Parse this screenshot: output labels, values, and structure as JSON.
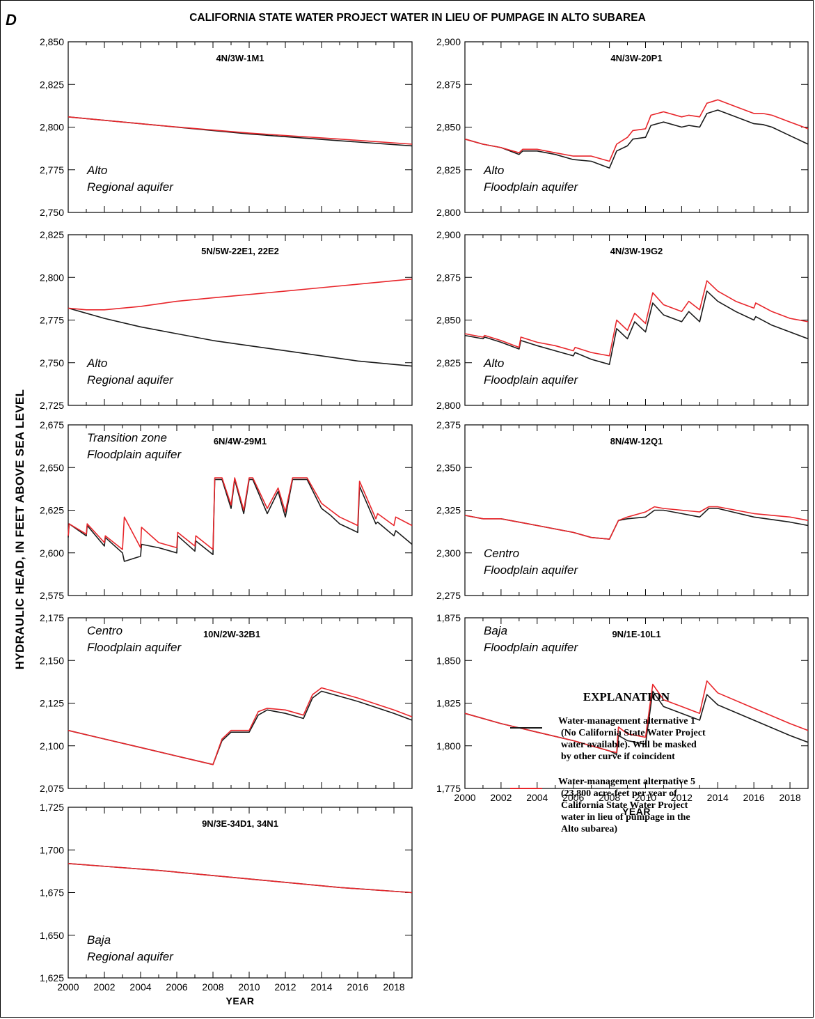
{
  "figure": {
    "letter": "D",
    "title": "CALIFORNIA STATE WATER PROJECT WATER IN LIEU OF PUMPAGE IN ALTO SUBAREA",
    "ylabel": "HYDRAULIC HEAD, IN FEET ABOVE SEA LEVEL",
    "xlabel": "YEAR",
    "colors": {
      "alt1": "#1a1a1a",
      "alt5": "#e8262b"
    }
  },
  "explanation": {
    "title": "EXPLANATION",
    "items": [
      {
        "series": "alt1",
        "lines": [
          "Water-management alternative 1",
          "(No California State Water Project",
          "water available). Will be masked",
          "by other curve if coincident"
        ]
      },
      {
        "series": "alt5",
        "lines": [
          "Water-management alternative 5",
          "(23,800 acre-feet per year of",
          "California State Water Project",
          "water in lieu of pumpage in the",
          "Alto subarea)"
        ]
      }
    ]
  },
  "chart_data": [
    {
      "type": "line",
      "title": "4N/3W-1M1",
      "location": [
        "Alto",
        "Regional aquifer"
      ],
      "xlim": [
        2000,
        2019
      ],
      "ylim": [
        2750,
        2850
      ],
      "yticks": [
        2750,
        2775,
        2800,
        2825,
        2850
      ],
      "series": [
        {
          "name": "Water-management alternative 1",
          "key": "alt1",
          "x": [
            2000,
            2005,
            2010,
            2015,
            2019
          ],
          "y": [
            2806,
            2801,
            2796,
            2792,
            2789
          ]
        },
        {
          "name": "Water-management alternative 5",
          "key": "alt5",
          "x": [
            2000,
            2005,
            2010,
            2015,
            2019
          ],
          "y": [
            2806,
            2801,
            2796.5,
            2793,
            2790
          ]
        }
      ]
    },
    {
      "type": "line",
      "title": "4N/3W-20P1",
      "location": [
        "Alto",
        "Floodplain aquifer"
      ],
      "xlim": [
        2000,
        2019
      ],
      "ylim": [
        2800,
        2900
      ],
      "yticks": [
        2800,
        2825,
        2850,
        2875,
        2900
      ],
      "series": [
        {
          "name": "Water-management alternative 1",
          "key": "alt1",
          "x": [
            2000,
            2001,
            2002,
            2003,
            2003.2,
            2004,
            2005,
            2006,
            2007,
            2008,
            2008.4,
            2009,
            2009.3,
            2010,
            2010.3,
            2011,
            2012,
            2012.4,
            2013,
            2013.4,
            2014,
            2015,
            2016,
            2016.5,
            2017,
            2018,
            2019
          ],
          "y": [
            2843,
            2840,
            2838,
            2834,
            2836,
            2836,
            2834,
            2831,
            2830,
            2826,
            2836,
            2839,
            2843,
            2844,
            2851,
            2853,
            2850,
            2851,
            2850,
            2858,
            2860,
            2856,
            2852,
            2851.5,
            2850,
            2845,
            2840
          ]
        },
        {
          "name": "Water-management alternative 5",
          "key": "alt5",
          "x": [
            2000,
            2001,
            2002,
            2003,
            2003.2,
            2004,
            2005,
            2006,
            2007,
            2008,
            2008.4,
            2009,
            2009.3,
            2010,
            2010.3,
            2011,
            2012,
            2012.4,
            2013,
            2013.4,
            2014,
            2015,
            2016,
            2016.5,
            2017,
            2018,
            2019
          ],
          "y": [
            2843,
            2840,
            2838,
            2835,
            2837,
            2837,
            2835,
            2833,
            2833,
            2830,
            2840,
            2844,
            2848,
            2849,
            2857,
            2859,
            2856,
            2857,
            2856,
            2864,
            2866,
            2862,
            2858,
            2858,
            2857,
            2853,
            2849
          ]
        }
      ]
    },
    {
      "type": "line",
      "title": "5N/5W-22E1, 22E2",
      "location": [
        "Alto",
        "Regional aquifer"
      ],
      "xlim": [
        2000,
        2019
      ],
      "ylim": [
        2725,
        2825
      ],
      "yticks": [
        2725,
        2750,
        2775,
        2800,
        2825
      ],
      "series": [
        {
          "name": "Water-management alternative 1",
          "key": "alt1",
          "x": [
            2000,
            2002,
            2004,
            2006,
            2008,
            2010,
            2012,
            2014,
            2016,
            2018,
            2019
          ],
          "y": [
            2782,
            2776,
            2771,
            2767,
            2763,
            2760,
            2757,
            2754,
            2751,
            2749,
            2748
          ]
        },
        {
          "name": "Water-management alternative 5",
          "key": "alt5",
          "x": [
            2000,
            2001,
            2002,
            2004,
            2006,
            2008,
            2010,
            2012,
            2014,
            2016,
            2018,
            2019
          ],
          "y": [
            2782,
            2781,
            2781,
            2783,
            2786,
            2788,
            2790,
            2792,
            2794,
            2796,
            2798,
            2799
          ]
        }
      ]
    },
    {
      "type": "line",
      "title": "4N/3W-19G2",
      "location": [
        "Alto",
        "Floodplain aquifer"
      ],
      "xlim": [
        2000,
        2019
      ],
      "ylim": [
        2800,
        2900
      ],
      "yticks": [
        2800,
        2825,
        2850,
        2875,
        2900
      ],
      "series": [
        {
          "name": "Water-management alternative 1",
          "key": "alt1",
          "x": [
            2000,
            2001,
            2001.1,
            2002,
            2003,
            2003.1,
            2004,
            2005,
            2006,
            2006.1,
            2007,
            2008,
            2008.4,
            2009,
            2009.4,
            2010,
            2010.4,
            2011,
            2012,
            2012.4,
            2013,
            2013.4,
            2014,
            2015,
            2016,
            2016.1,
            2017,
            2018,
            2019
          ],
          "y": [
            2841,
            2839,
            2840,
            2837,
            2833,
            2838,
            2835,
            2832,
            2829,
            2831,
            2827,
            2824,
            2845,
            2839,
            2849,
            2843,
            2860,
            2853,
            2849,
            2855,
            2849,
            2867,
            2861,
            2855,
            2850,
            2852,
            2847,
            2843,
            2839
          ]
        },
        {
          "name": "Water-management alternative 5",
          "key": "alt5",
          "x": [
            2000,
            2001,
            2001.1,
            2002,
            2003,
            2003.1,
            2004,
            2005,
            2006,
            2006.1,
            2007,
            2008,
            2008.4,
            2009,
            2009.4,
            2010,
            2010.4,
            2011,
            2012,
            2012.4,
            2013,
            2013.4,
            2014,
            2015,
            2016,
            2016.1,
            2017,
            2018,
            2019
          ],
          "y": [
            2842,
            2840,
            2841,
            2838,
            2834,
            2840,
            2837,
            2835,
            2832,
            2834,
            2831,
            2829,
            2850,
            2844,
            2854,
            2848,
            2866,
            2859,
            2855,
            2861,
            2856,
            2873,
            2867,
            2861,
            2857,
            2860,
            2855,
            2851,
            2849
          ]
        }
      ]
    },
    {
      "type": "line",
      "title": "6N/4W-29M1",
      "location": [
        "Transition zone",
        "Floodplain aquifer"
      ],
      "xlim": [
        2000,
        2019
      ],
      "ylim": [
        2575,
        2675
      ],
      "yticks": [
        2575,
        2600,
        2625,
        2650,
        2675
      ],
      "series": [
        {
          "name": "Water-management alternative 1",
          "key": "alt1",
          "x": [
            2000,
            2000.05,
            2001,
            2001.05,
            2002,
            2002.05,
            2003,
            2003.1,
            2004,
            2004.05,
            2005,
            2006,
            2006.05,
            2007,
            2007.05,
            2008,
            2008.1,
            2008.5,
            2009,
            2009.2,
            2009.7,
            2010,
            2010.2,
            2011,
            2011.6,
            2012,
            2012.4,
            2013,
            2013.2,
            2014,
            2014.5,
            2015,
            2016,
            2016.1,
            2017,
            2017.1,
            2018,
            2018.1,
            2019
          ],
          "y": [
            2609,
            2617,
            2610,
            2616,
            2604,
            2609,
            2600,
            2595,
            2598,
            2605,
            2603,
            2600,
            2610,
            2601,
            2607,
            2599,
            2643,
            2643,
            2626,
            2643,
            2623,
            2643,
            2643,
            2623,
            2636,
            2621,
            2643,
            2643,
            2643,
            2626,
            2622,
            2617,
            2612,
            2639,
            2617,
            2618,
            2610,
            2613,
            2605
          ]
        },
        {
          "name": "Water-management alternative 5",
          "key": "alt5",
          "x": [
            2000,
            2000.05,
            2001,
            2001.05,
            2002,
            2002.05,
            2003,
            2003.1,
            2004,
            2004.05,
            2005,
            2006,
            2006.05,
            2007,
            2007.05,
            2008,
            2008.1,
            2008.5,
            2009,
            2009.2,
            2009.7,
            2010,
            2010.2,
            2011,
            2011.6,
            2012,
            2012.4,
            2013,
            2013.2,
            2014,
            2014.5,
            2015,
            2016,
            2016.1,
            2017,
            2017.1,
            2018,
            2018.1,
            2019
          ],
          "y": [
            2610,
            2617,
            2611,
            2617,
            2606,
            2610,
            2602,
            2621,
            2603,
            2615,
            2606,
            2603,
            2612,
            2604,
            2610,
            2602,
            2644,
            2644,
            2628,
            2644,
            2625,
            2644,
            2644,
            2626,
            2638,
            2624,
            2644,
            2644,
            2644,
            2629,
            2625,
            2621,
            2616,
            2642,
            2620,
            2623,
            2616,
            2621,
            2616
          ]
        }
      ]
    },
    {
      "type": "line",
      "title": "8N/4W-12Q1",
      "location": [
        "Centro",
        "Floodplain aquifer"
      ],
      "xlim": [
        2000,
        2019
      ],
      "ylim": [
        2275,
        2375
      ],
      "yticks": [
        2275,
        2300,
        2325,
        2350,
        2375
      ],
      "series": [
        {
          "name": "Water-management alternative 1",
          "key": "alt1",
          "x": [
            2000,
            2001,
            2002,
            2004,
            2006,
            2007,
            2008,
            2008.5,
            2009,
            2010,
            2010.5,
            2011,
            2012,
            2013,
            2013.5,
            2014,
            2016,
            2018,
            2019
          ],
          "y": [
            2322,
            2320,
            2320,
            2316,
            2312,
            2309,
            2308,
            2319,
            2320,
            2321,
            2325,
            2325,
            2323,
            2321,
            2326,
            2326,
            2321,
            2318,
            2316
          ]
        },
        {
          "name": "Water-management alternative 5",
          "key": "alt5",
          "x": [
            2000,
            2001,
            2002,
            2004,
            2006,
            2007,
            2008,
            2008.5,
            2009,
            2010,
            2010.5,
            2011,
            2012,
            2013,
            2013.5,
            2014,
            2016,
            2018,
            2019
          ],
          "y": [
            2322,
            2320,
            2320,
            2316,
            2312,
            2309,
            2308,
            2319,
            2321,
            2324,
            2327,
            2326,
            2325,
            2324,
            2327,
            2327,
            2323,
            2321,
            2319
          ]
        }
      ]
    },
    {
      "type": "line",
      "title": "10N/2W-32B1",
      "location": [
        "Centro",
        "Floodplain aquifer"
      ],
      "xlim": [
        2000,
        2019
      ],
      "ylim": [
        2075,
        2175
      ],
      "yticks": [
        2075,
        2100,
        2125,
        2150,
        2175
      ],
      "series": [
        {
          "name": "Water-management alternative 1",
          "key": "alt1",
          "x": [
            2000,
            2002,
            2004,
            2006,
            2008,
            2008.5,
            2009,
            2010,
            2010.5,
            2011,
            2012,
            2013,
            2013.5,
            2014,
            2016,
            2018,
            2019
          ],
          "y": [
            2109,
            2104,
            2099,
            2094,
            2089,
            2103,
            2108,
            2108,
            2118,
            2121,
            2119,
            2116,
            2128,
            2132,
            2126,
            2119,
            2115
          ]
        },
        {
          "name": "Water-management alternative 5",
          "key": "alt5",
          "x": [
            2000,
            2002,
            2004,
            2006,
            2008,
            2008.5,
            2009,
            2010,
            2010.5,
            2011,
            2012,
            2013,
            2013.5,
            2014,
            2016,
            2018,
            2019
          ],
          "y": [
            2109,
            2104,
            2099,
            2094,
            2089,
            2104,
            2109,
            2109,
            2120,
            2122,
            2121,
            2118,
            2130,
            2134,
            2128,
            2121,
            2117
          ]
        }
      ]
    },
    {
      "type": "line",
      "title": "9N/1E-10L1",
      "location": [
        "Baja",
        "Floodplain aquifer"
      ],
      "xlim": [
        2000,
        2019
      ],
      "ylim": [
        1775,
        1875
      ],
      "yticks": [
        1775,
        1800,
        1825,
        1850,
        1875
      ],
      "series": [
        {
          "name": "Water-management alternative 1",
          "key": "alt1",
          "x": [
            2000,
            2002,
            2004,
            2006,
            2008,
            2008.4,
            2008.5,
            2009,
            2010,
            2010.4,
            2011,
            2012,
            2013,
            2013.4,
            2014,
            2016,
            2018,
            2019
          ],
          "y": [
            1819,
            1813,
            1808,
            1803,
            1797,
            1795,
            1806,
            1803,
            1801,
            1832,
            1823,
            1819,
            1815,
            1830,
            1824,
            1815,
            1806,
            1802
          ]
        },
        {
          "name": "Water-management alternative 5",
          "key": "alt5",
          "x": [
            2000,
            2002,
            2004,
            2006,
            2008,
            2008.4,
            2008.5,
            2009,
            2010,
            2010.4,
            2011,
            2012,
            2013,
            2013.4,
            2014,
            2016,
            2018,
            2019
          ],
          "y": [
            1819,
            1813,
            1808,
            1803,
            1797,
            1796,
            1811,
            1807,
            1805,
            1836,
            1827,
            1823,
            1819,
            1838,
            1831,
            1822,
            1813,
            1809
          ]
        }
      ]
    },
    {
      "type": "line",
      "title": "9N/3E-34D1, 34N1",
      "location": [
        "Baja",
        "Regional aquifer"
      ],
      "xlim": [
        2000,
        2019
      ],
      "ylim": [
        1625,
        1725
      ],
      "yticks": [
        1625,
        1650,
        1675,
        1700,
        1725
      ],
      "series": [
        {
          "name": "Water-management alternative 1",
          "key": "alt1",
          "x": [
            2000,
            2005,
            2010,
            2015,
            2019
          ],
          "y": [
            1692,
            1688,
            1683,
            1678,
            1675
          ]
        },
        {
          "name": "Water-management alternative 5",
          "key": "alt5",
          "x": [
            2000,
            2005,
            2010,
            2015,
            2019
          ],
          "y": [
            1692,
            1688,
            1683,
            1678,
            1675
          ]
        }
      ]
    }
  ]
}
